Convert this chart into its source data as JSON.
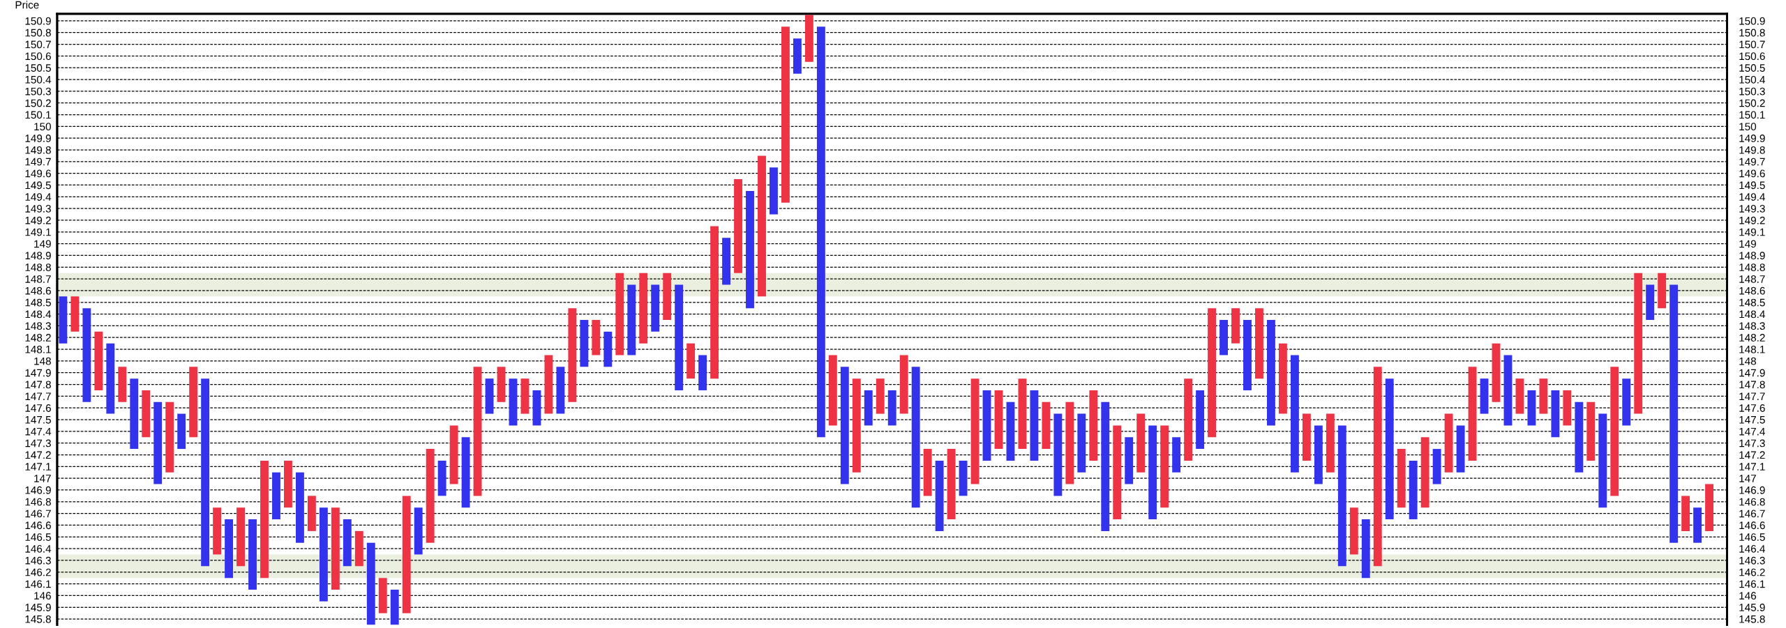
{
  "chart_data": {
    "type": "bar",
    "ylabel": "Price",
    "categories": [
      null,
      null,
      null,
      null,
      null,
      null,
      null,
      null,
      null,
      null,
      null,
      null,
      null,
      null,
      null,
      null,
      null,
      null,
      null,
      null,
      null,
      null,
      null,
      null,
      null,
      null,
      null,
      null,
      null,
      null,
      null,
      null,
      null,
      null,
      null,
      null,
      null,
      null,
      null,
      null,
      null,
      null,
      null,
      null,
      null,
      null,
      null,
      null,
      null,
      null,
      null,
      null,
      null,
      null,
      null,
      null,
      null,
      null,
      null,
      null,
      null,
      null,
      null,
      null,
      null,
      null,
      null,
      null,
      null,
      null,
      null,
      null,
      null,
      null,
      null,
      null,
      null,
      null,
      null,
      null,
      null,
      null,
      null,
      null,
      null,
      null,
      null,
      null,
      null,
      null,
      null,
      null,
      null,
      null,
      null,
      null,
      null,
      null,
      null,
      null,
      null,
      null,
      null,
      null,
      null,
      null,
      null,
      null,
      null,
      null,
      null,
      null,
      null,
      null,
      null,
      null,
      null,
      null,
      null,
      null,
      null,
      null,
      null,
      null,
      null,
      null,
      null,
      null,
      null,
      null,
      null,
      null,
      null,
      null,
      null,
      null,
      null,
      null,
      null,
      null
    ],
    "base": [
      148.15,
      148.25,
      147.65,
      147.75,
      147.55,
      147.65,
      147.25,
      147.35,
      146.95,
      147.05,
      147.25,
      147.35,
      146.25,
      146.35,
      146.15,
      146.25,
      146.05,
      146.15,
      146.65,
      146.75,
      146.45,
      146.55,
      145.95,
      146.05,
      146.25,
      146.25,
      145.75,
      145.85,
      145.75,
      145.85,
      146.35,
      146.45,
      146.85,
      146.95,
      146.75,
      146.85,
      147.55,
      147.65,
      147.45,
      147.55,
      147.45,
      147.55,
      147.55,
      147.65,
      147.95,
      148.05,
      147.95,
      148.05,
      148.05,
      148.15,
      148.25,
      148.35,
      147.75,
      147.85,
      147.75,
      147.85,
      148.65,
      148.75,
      148.45,
      148.55,
      149.25,
      149.35,
      150.45,
      150.55,
      147.35,
      147.45,
      146.95,
      147.05,
      147.45,
      147.55,
      147.45,
      147.55,
      146.75,
      146.85,
      146.55,
      146.65,
      146.85,
      146.95,
      147.15,
      147.25,
      147.15,
      147.25,
      147.15,
      147.25,
      146.85,
      146.95,
      147.05,
      147.15,
      146.55,
      146.65,
      146.95,
      147.05,
      146.65,
      146.75,
      147.05,
      147.15,
      147.25,
      147.35,
      148.05,
      148.15,
      147.75,
      147.85,
      147.45,
      147.55,
      147.05,
      147.15,
      146.95,
      147.05,
      146.25,
      146.35,
      146.15,
      146.25,
      146.65,
      146.75,
      146.65,
      146.75,
      146.95,
      147.05,
      147.05,
      147.15,
      147.55,
      147.65,
      147.45,
      147.55,
      147.45,
      147.55,
      147.35,
      147.45,
      147.05,
      147.15,
      146.75,
      146.85,
      147.45,
      147.55,
      148.35,
      148.45,
      146.45,
      146.55,
      146.45,
      146.55
    ],
    "values": [
      0.4,
      0.3,
      0.8,
      0.5,
      0.6,
      0.3,
      0.6,
      0.4,
      0.7,
      0.6,
      0.3,
      0.6,
      1.6,
      0.4,
      0.5,
      0.5,
      0.6,
      1.0,
      0.4,
      0.4,
      0.6,
      0.3,
      0.8,
      0.7,
      0.4,
      0.3,
      0.7,
      0.3,
      0.3,
      1.0,
      0.4,
      0.8,
      0.3,
      0.5,
      0.6,
      1.1,
      0.3,
      0.3,
      0.4,
      0.3,
      0.3,
      0.5,
      0.4,
      0.8,
      0.4,
      0.3,
      0.3,
      0.7,
      0.6,
      0.6,
      0.4,
      0.4,
      0.9,
      0.3,
      0.3,
      1.3,
      0.4,
      0.8,
      1.0,
      1.2,
      0.4,
      1.5,
      0.3,
      0.4,
      3.5,
      0.6,
      1.0,
      0.8,
      0.3,
      0.3,
      0.3,
      0.5,
      1.2,
      0.4,
      0.6,
      0.6,
      0.3,
      0.9,
      0.6,
      0.5,
      0.5,
      0.6,
      0.6,
      0.4,
      0.7,
      0.7,
      0.5,
      0.6,
      1.1,
      0.8,
      0.4,
      0.5,
      0.8,
      0.7,
      0.3,
      0.7,
      0.5,
      1.1,
      0.3,
      0.3,
      0.6,
      0.6,
      0.9,
      0.6,
      1.0,
      0.4,
      0.5,
      0.5,
      1.2,
      0.4,
      0.5,
      1.7,
      1.2,
      0.5,
      0.5,
      0.6,
      0.3,
      0.5,
      0.4,
      0.8,
      0.3,
      0.5,
      0.6,
      0.3,
      0.3,
      0.3,
      0.4,
      0.3,
      0.6,
      0.5,
      0.8,
      1.1,
      0.4,
      1.2,
      0.3,
      0.3,
      2.2,
      0.3,
      0.3,
      0.4
    ],
    "colors": [
      "#3333ee",
      "#ee3344",
      "#3333ee",
      "#ee3344",
      "#3333ee",
      "#ee3344",
      "#3333ee",
      "#ee3344",
      "#3333ee",
      "#ee3344",
      "#3333ee",
      "#ee3344",
      "#3333ee",
      "#ee3344",
      "#3333ee",
      "#ee3344",
      "#3333ee",
      "#ee3344",
      "#3333ee",
      "#ee3344",
      "#3333ee",
      "#ee3344",
      "#3333ee",
      "#ee3344",
      "#3333ee",
      "#ee3344",
      "#3333ee",
      "#ee3344",
      "#3333ee",
      "#ee3344",
      "#3333ee",
      "#ee3344",
      "#3333ee",
      "#ee3344",
      "#3333ee",
      "#ee3344",
      "#3333ee",
      "#ee3344",
      "#3333ee",
      "#ee3344",
      "#3333ee",
      "#ee3344",
      "#3333ee",
      "#ee3344",
      "#3333ee",
      "#ee3344",
      "#3333ee",
      "#ee3344",
      "#3333ee",
      "#ee3344",
      "#3333ee",
      "#ee3344",
      "#3333ee",
      "#ee3344",
      "#3333ee",
      "#ee3344",
      "#3333ee",
      "#ee3344",
      "#3333ee",
      "#ee3344",
      "#3333ee",
      "#ee3344",
      "#3333ee",
      "#ee3344",
      "#3333ee",
      "#ee3344",
      "#3333ee",
      "#ee3344",
      "#3333ee",
      "#ee3344",
      "#3333ee",
      "#ee3344",
      "#3333ee",
      "#ee3344",
      "#3333ee",
      "#ee3344",
      "#3333ee",
      "#ee3344",
      "#3333ee",
      "#ee3344",
      "#3333ee",
      "#ee3344",
      "#3333ee",
      "#ee3344",
      "#3333ee",
      "#ee3344",
      "#3333ee",
      "#ee3344",
      "#3333ee",
      "#ee3344",
      "#3333ee",
      "#ee3344",
      "#3333ee",
      "#ee3344",
      "#3333ee",
      "#ee3344",
      "#3333ee",
      "#ee3344",
      "#3333ee",
      "#ee3344",
      "#3333ee",
      "#ee3344",
      "#3333ee",
      "#ee3344",
      "#3333ee",
      "#ee3344",
      "#3333ee",
      "#ee3344",
      "#3333ee",
      "#ee3344",
      "#3333ee",
      "#ee3344",
      "#3333ee",
      "#ee3344",
      "#3333ee",
      "#ee3344",
      "#3333ee",
      "#ee3344",
      "#3333ee",
      "#ee3344",
      "#3333ee",
      "#ee3344",
      "#3333ee",
      "#ee3344",
      "#3333ee",
      "#ee3344",
      "#3333ee",
      "#ee3344",
      "#3333ee",
      "#ee3344",
      "#3333ee",
      "#ee3344",
      "#3333ee",
      "#ee3344",
      "#3333ee",
      "#ee3344",
      "#3333ee",
      "#ee3344",
      "#3333ee",
      "#ee3344"
    ],
    "ylim": [
      145.75,
      150.96
    ],
    "yticks": [
      145.8,
      145.9,
      146,
      146.1,
      146.2,
      146.3,
      146.4,
      146.5,
      146.6,
      146.7,
      146.8,
      146.9,
      147,
      147.1,
      147.2,
      147.3,
      147.4,
      147.5,
      147.6,
      147.7,
      147.8,
      147.9,
      148,
      148.1,
      148.2,
      148.3,
      148.4,
      148.5,
      148.6,
      148.7,
      148.8,
      148.9,
      149,
      149.1,
      149.2,
      149.3,
      149.4,
      149.5,
      149.6,
      149.7,
      149.8,
      149.9,
      150,
      150.1,
      150.2,
      150.3,
      150.4,
      150.5,
      150.6,
      150.7,
      150.8,
      150.9
    ],
    "y2lim": [
      145.75,
      150.96
    ],
    "y2ticks": [
      145.8,
      145.9,
      146,
      146.1,
      146.2,
      146.3,
      146.4,
      146.5,
      146.6,
      146.7,
      146.8,
      146.9,
      147,
      147.1,
      147.2,
      147.3,
      147.4,
      147.5,
      147.6,
      147.7,
      147.8,
      147.9,
      148,
      148.1,
      148.2,
      148.3,
      148.4,
      148.5,
      148.6,
      148.7,
      148.8,
      148.9,
      149,
      149.1,
      149.2,
      149.3,
      149.4,
      149.5,
      149.6,
      149.7,
      149.8,
      149.9,
      150,
      150.1,
      150.2,
      150.3,
      150.4,
      150.5,
      150.6,
      150.7,
      150.8,
      150.9
    ],
    "bands": [
      {
        "axis": "y",
        "from": 148.55,
        "to": 148.75,
        "color": "#ebefdf"
      },
      {
        "axis": "y",
        "from": 146.15,
        "to": 146.35,
        "color": "#ebefdf"
      }
    ],
    "grid": "y",
    "tick_labels": "y"
  }
}
